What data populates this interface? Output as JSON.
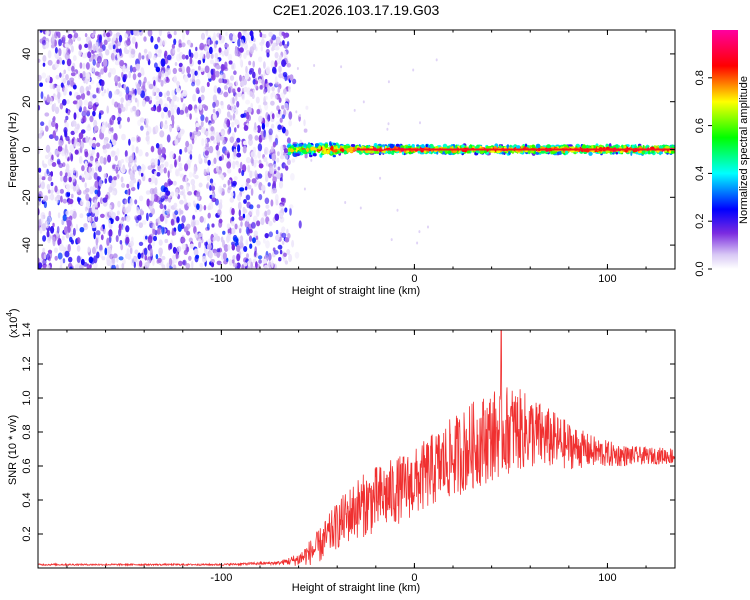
{
  "page": {
    "title": "C2E1.2026.103.17.19.G03"
  },
  "chart_data": [
    {
      "type": "heatmap",
      "title": "C2E1.2026.103.17.19.G03",
      "xlabel": "Height of straight line (km)",
      "ylabel": "Frequency (Hz)",
      "xlim": [
        -195,
        135
      ],
      "ylim": [
        -50,
        50
      ],
      "xticks": [
        -100,
        0,
        100
      ],
      "xtick_labels": [
        "-100",
        "0",
        "100"
      ],
      "yticks": [
        -40,
        -20,
        0,
        20,
        40
      ],
      "ytick_labels": [
        "-40",
        "-20",
        "0",
        "20",
        "40"
      ],
      "grid": false,
      "colorbar": {
        "label": "Normalized spectral amplitude",
        "range": [
          0,
          1
        ],
        "ticks": [
          0,
          0.2,
          0.4,
          0.6,
          0.8
        ],
        "tick_labels": [
          "0.0",
          "0.2",
          "0.4",
          "0.6",
          "0.8"
        ],
        "colors": [
          "#ffffff",
          "#7b2be0",
          "#0000ff",
          "#00ffff",
          "#00ff00",
          "#ffff00",
          "#ff0000",
          "#ff00a0"
        ]
      },
      "regions": [
        {
          "x_range": [
            -195,
            -65
          ],
          "y_range": [
            -50,
            50
          ],
          "amplitude_range": [
            0.02,
            0.25
          ]
        },
        {
          "x_range": [
            -65,
            135
          ],
          "y_range": [
            -3,
            3
          ],
          "amplitude_range": [
            0.3,
            1.0
          ]
        }
      ],
      "ridge": {
        "frequency": 0
      }
    },
    {
      "type": "line",
      "title": "",
      "xlabel": "Height of straight line (km)",
      "ylabel": "SNR (10 * v/v)",
      "y_multiplier_label": "(x10",
      "y_multiplier_exponent": "4",
      "y_multiplier_close": ")",
      "xlim": [
        -195,
        135
      ],
      "ylim": [
        0,
        1.4
      ],
      "xticks": [
        -100,
        0,
        100
      ],
      "xtick_labels": [
        "-100",
        "0",
        "100"
      ],
      "yticks": [
        0.2,
        0.4,
        0.6,
        0.8,
        1.0,
        1.2,
        1.4
      ],
      "ytick_labels": [
        "0.2",
        "0.4",
        "0.6",
        "0.8",
        "1.0",
        "1.2",
        "1.4"
      ],
      "grid": false,
      "series": [
        {
          "color": "#f03030",
          "x": [
            -195,
            -150,
            -100,
            -70,
            -60,
            -50,
            -40,
            -30,
            -20,
            -10,
            0,
            10,
            20,
            30,
            40,
            50,
            60,
            70,
            80,
            90,
            100,
            110,
            120,
            135
          ],
          "y": [
            0.02,
            0.02,
            0.02,
            0.03,
            0.05,
            0.12,
            0.25,
            0.35,
            0.4,
            0.45,
            0.5,
            0.58,
            0.65,
            0.72,
            0.78,
            0.82,
            0.8,
            0.76,
            0.72,
            0.69,
            0.67,
            0.66,
            0.66,
            0.66
          ],
          "noise": [
            0.005,
            0.005,
            0.005,
            0.01,
            0.04,
            0.1,
            0.14,
            0.18,
            0.2,
            0.2,
            0.2,
            0.22,
            0.24,
            0.26,
            0.27,
            0.26,
            0.22,
            0.18,
            0.14,
            0.1,
            0.08,
            0.06,
            0.05,
            0.05
          ]
        }
      ],
      "max_point": {
        "x": 45,
        "y": 1.4
      }
    }
  ]
}
